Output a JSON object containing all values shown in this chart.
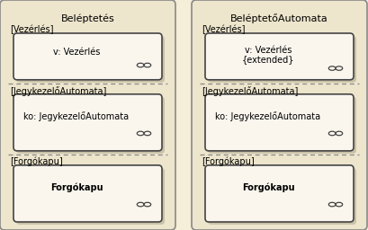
{
  "bg_color": "#f5eed8",
  "outer_box_color": "#ede5cc",
  "outer_box_edge": "#888888",
  "obj_box_color": "#faf6ee",
  "obj_box_edge": "#444444",
  "shadow_color": "#c8c0a8",
  "diagram1": {
    "title": "Beléptetés",
    "sections": [
      {
        "label": "[Vezérlés]",
        "obj_line1": "v: Vezérlés",
        "obj_line2": null,
        "bold": false
      },
      {
        "label": "[JegykezelőAutomata]",
        "obj_line1": "ko: JegykezelőAutomata",
        "obj_line2": null,
        "bold": false
      },
      {
        "label": "[Forgókapu]",
        "obj_line1": "Forgókapu",
        "obj_line2": null,
        "bold": true
      }
    ]
  },
  "diagram2": {
    "title": "BeléptetőAutomata",
    "sections": [
      {
        "label": "[Vezérlés]",
        "obj_line1": "v: Vezérlés",
        "obj_line2": "{extended}",
        "bold": false
      },
      {
        "label": "[JegykezelőAutomata]",
        "obj_line1": "ko: JegykezelőAutomata",
        "obj_line2": null,
        "bold": false
      },
      {
        "label": "[Forgókapu]",
        "obj_line1": "Forgókapu",
        "obj_line2": null,
        "bold": true
      }
    ]
  },
  "title_fontsize": 8,
  "label_fontsize": 7,
  "obj_fontsize": 7,
  "figsize": [
    4.09,
    2.56
  ],
  "dpi": 100
}
